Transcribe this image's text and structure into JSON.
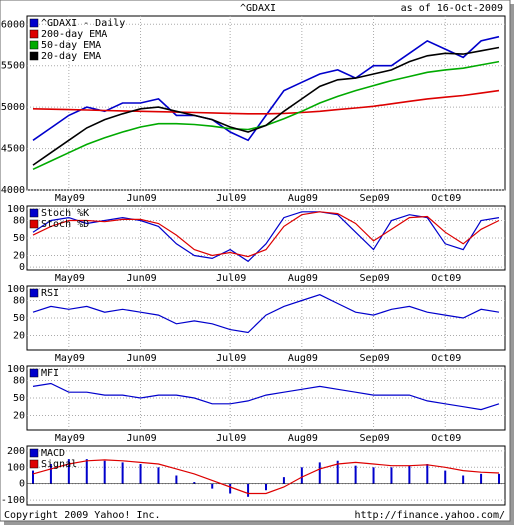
{
  "chart_data": [
    {
      "type": "line",
      "title": "^GDAXI",
      "subtitle": "as of 16-Oct-2009",
      "categories": [
        null,
        null,
        "May09",
        null,
        null,
        null,
        "Jun09",
        null,
        null,
        null,
        null,
        "Jul09",
        null,
        null,
        null,
        "Aug09",
        null,
        null,
        null,
        "Sep09",
        null,
        null,
        null,
        "Oct09",
        null,
        null,
        null
      ],
      "ylim": [
        4000,
        6100
      ],
      "yticks": [
        4000,
        4500,
        5000,
        5500,
        6000
      ],
      "grid": true,
      "series": [
        {
          "name": "^GDAXI - Daily",
          "color": "#0000cc",
          "values": [
            4600,
            4750,
            4900,
            5000,
            4950,
            5050,
            5050,
            5100,
            4900,
            4900,
            4850,
            4700,
            4600,
            4900,
            5200,
            5300,
            5400,
            5450,
            5350,
            5500,
            5500,
            5650,
            5800,
            5700,
            5600,
            5800,
            5850
          ]
        },
        {
          "name": "200-day EMA",
          "color": "#dd0000",
          "values": [
            4980,
            4975,
            4970,
            4965,
            4960,
            4955,
            4950,
            4945,
            4940,
            4935,
            4930,
            4925,
            4920,
            4920,
            4925,
            4935,
            4950,
            4970,
            4990,
            5010,
            5040,
            5070,
            5100,
            5120,
            5140,
            5170,
            5200
          ]
        },
        {
          "name": "50-day EMA",
          "color": "#00aa00",
          "values": [
            4250,
            4350,
            4450,
            4550,
            4630,
            4700,
            4760,
            4800,
            4800,
            4790,
            4770,
            4740,
            4730,
            4780,
            4860,
            4950,
            5050,
            5130,
            5200,
            5260,
            5320,
            5370,
            5420,
            5450,
            5470,
            5510,
            5550
          ]
        },
        {
          "name": "20-day EMA",
          "color": "#000000",
          "values": [
            4300,
            4450,
            4600,
            4750,
            4850,
            4920,
            4980,
            5000,
            4950,
            4900,
            4850,
            4760,
            4700,
            4780,
            4950,
            5100,
            5250,
            5330,
            5350,
            5400,
            5450,
            5550,
            5620,
            5650,
            5640,
            5680,
            5720
          ]
        }
      ]
    },
    {
      "type": "line",
      "categories": [
        null,
        null,
        "May09",
        null,
        null,
        null,
        "Jun09",
        null,
        null,
        null,
        null,
        "Jul09",
        null,
        null,
        null,
        "Aug09",
        null,
        null,
        null,
        "Sep09",
        null,
        null,
        null,
        "Oct09",
        null,
        null,
        null
      ],
      "ylim": [
        -5,
        105
      ],
      "yticks": [
        0,
        20,
        50,
        80,
        100
      ],
      "grid": true,
      "series": [
        {
          "name": "Stoch %K",
          "color": "#0000cc",
          "values": [
            60,
            80,
            85,
            75,
            80,
            85,
            80,
            70,
            40,
            20,
            15,
            30,
            10,
            40,
            85,
            95,
            95,
            90,
            60,
            30,
            80,
            90,
            85,
            40,
            30,
            80,
            85
          ]
        },
        {
          "name": "Stoch %D",
          "color": "#dd0000",
          "values": [
            55,
            70,
            80,
            80,
            78,
            82,
            82,
            75,
            55,
            30,
            20,
            25,
            18,
            30,
            70,
            90,
            95,
            92,
            75,
            45,
            65,
            85,
            87,
            60,
            40,
            65,
            80
          ]
        }
      ]
    },
    {
      "type": "line",
      "categories": [
        null,
        null,
        "May09",
        null,
        null,
        null,
        "Jun09",
        null,
        null,
        null,
        null,
        "Jul09",
        null,
        null,
        null,
        "Aug09",
        null,
        null,
        null,
        "Sep09",
        null,
        null,
        null,
        "Oct09",
        null,
        null,
        null
      ],
      "ylim": [
        -5,
        105
      ],
      "yticks": [
        20,
        50,
        80,
        100
      ],
      "grid": true,
      "series": [
        {
          "name": "RSI",
          "color": "#0000cc",
          "values": [
            60,
            70,
            65,
            70,
            60,
            65,
            60,
            55,
            40,
            45,
            40,
            30,
            25,
            55,
            70,
            80,
            90,
            75,
            60,
            55,
            65,
            70,
            60,
            55,
            50,
            65,
            60
          ]
        }
      ]
    },
    {
      "type": "line",
      "categories": [
        null,
        null,
        "May09",
        null,
        null,
        null,
        "Jun09",
        null,
        null,
        null,
        null,
        "Jul09",
        null,
        null,
        null,
        "Aug09",
        null,
        null,
        null,
        "Sep09",
        null,
        null,
        null,
        "Oct09",
        null,
        null,
        null
      ],
      "ylim": [
        -5,
        105
      ],
      "yticks": [
        20,
        50,
        80,
        100
      ],
      "grid": true,
      "series": [
        {
          "name": "MFI",
          "color": "#0000cc",
          "values": [
            70,
            75,
            60,
            60,
            55,
            55,
            50,
            55,
            55,
            50,
            40,
            40,
            45,
            55,
            60,
            65,
            70,
            65,
            60,
            55,
            55,
            55,
            45,
            40,
            35,
            30,
            40
          ]
        }
      ]
    },
    {
      "type": "line",
      "ylim": [
        -130,
        230
      ],
      "yticks": [
        -100,
        0,
        100,
        200
      ],
      "grid": true,
      "series": [
        {
          "name": "MACD",
          "type": "bar",
          "color": "#0000cc",
          "values": [
            80,
            120,
            150,
            150,
            140,
            130,
            120,
            100,
            50,
            10,
            -30,
            -60,
            -80,
            -40,
            40,
            100,
            130,
            140,
            110,
            100,
            100,
            110,
            120,
            80,
            50,
            60,
            60
          ]
        },
        {
          "name": "Signal",
          "color": "#dd0000",
          "values": [
            60,
            90,
            120,
            140,
            145,
            140,
            130,
            120,
            90,
            60,
            20,
            -20,
            -60,
            -60,
            -20,
            40,
            90,
            120,
            130,
            120,
            110,
            110,
            115,
            100,
            80,
            70,
            65
          ]
        }
      ]
    }
  ],
  "footer": {
    "left": "Copyright 2009 Yahoo! Inc.",
    "right": "http://finance.yahoo.com/"
  }
}
